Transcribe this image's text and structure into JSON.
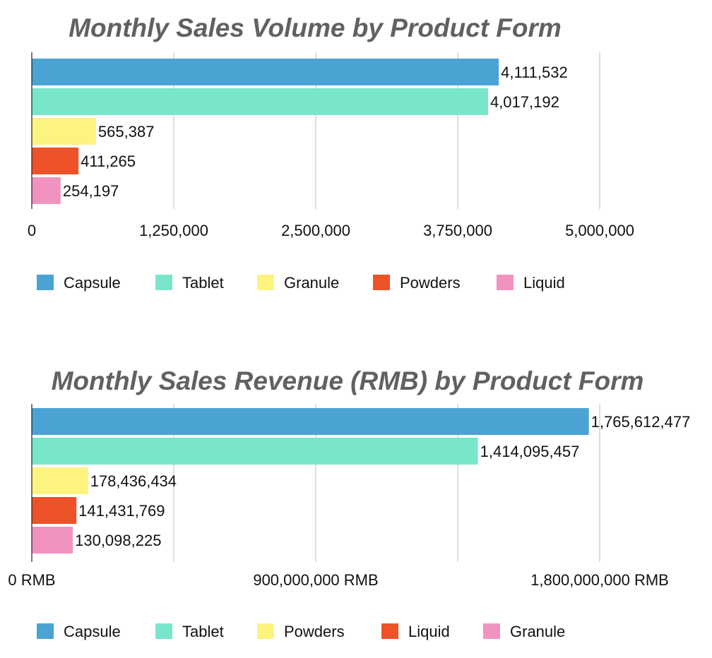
{
  "chart_data": [
    {
      "type": "bar",
      "orientation": "horizontal",
      "title": "Monthly Sales Volume by Product Form",
      "categories": [
        "Capsule",
        "Tablet",
        "Granule",
        "Powders",
        "Liquid"
      ],
      "values": [
        4111532,
        4017192,
        565387,
        411265,
        254197
      ],
      "value_labels": [
        "4,111,532",
        "4,017,192",
        "565,387",
        "411,265",
        "254,197"
      ],
      "colors": [
        "#4aa3d3",
        "#79e6cc",
        "#fdf37f",
        "#ee5228",
        "#f193c1"
      ],
      "xlim": [
        0,
        5000000
      ],
      "xticks": [
        0,
        1250000,
        2500000,
        3750000,
        5000000
      ],
      "xtick_labels": [
        "0",
        "1,250,000",
        "2,500,000",
        "3,750,000",
        "5,000,000"
      ],
      "grid": true,
      "legend_position": "bottom",
      "legend": [
        {
          "label": "Capsule",
          "color": "#4aa3d3"
        },
        {
          "label": "Tablet",
          "color": "#79e6cc"
        },
        {
          "label": "Granule",
          "color": "#fdf37f"
        },
        {
          "label": "Powders",
          "color": "#ee5228"
        },
        {
          "label": "Liquid",
          "color": "#f193c1"
        }
      ]
    },
    {
      "type": "bar",
      "orientation": "horizontal",
      "title": "Monthly Sales Revenue (RMB) by Product Form",
      "categories": [
        "Capsule",
        "Tablet",
        "Powders",
        "Liquid",
        "Granule"
      ],
      "values": [
        1765612477,
        1414095457,
        178436434,
        141431769,
        130098225
      ],
      "value_labels": [
        "1,765,612,477",
        "1,414,095,457",
        "178,436,434",
        "141,431,769",
        "130,098,225"
      ],
      "colors": [
        "#4aa3d3",
        "#79e6cc",
        "#fdf37f",
        "#ee5228",
        "#f193c1"
      ],
      "xlim": [
        0,
        1800000000
      ],
      "xticks": [
        0,
        900000000,
        1800000000
      ],
      "xtick_labels": [
        "0 RMB",
        "900,000,000 RMB",
        "1,800,000,000 RMB"
      ],
      "grid": true,
      "legend_position": "bottom",
      "legend": [
        {
          "label": "Capsule",
          "color": "#4aa3d3"
        },
        {
          "label": "Tablet",
          "color": "#79e6cc"
        },
        {
          "label": "Powders",
          "color": "#fdf37f"
        },
        {
          "label": "Liquid",
          "color": "#ee5228"
        },
        {
          "label": "Granule",
          "color": "#f193c1"
        }
      ]
    }
  ]
}
